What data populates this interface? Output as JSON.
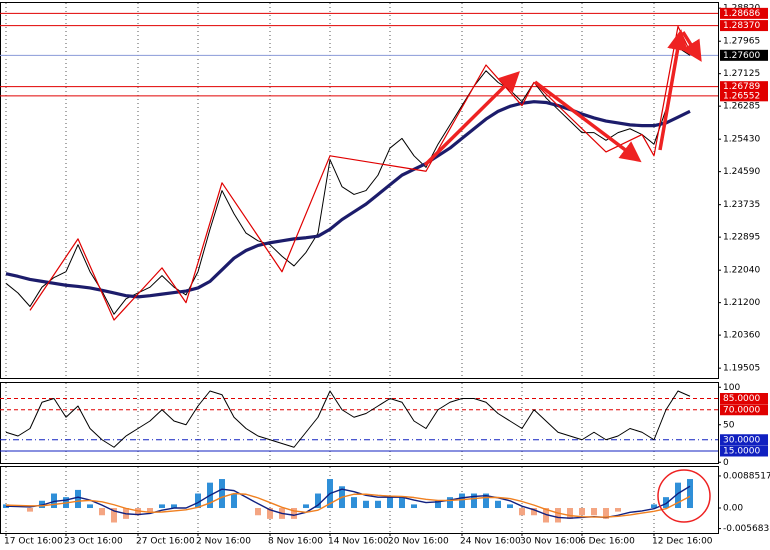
{
  "chart_data": [
    {
      "type": "line",
      "categories": [
        "17 Oct 16:00",
        null,
        null,
        null,
        null,
        "23 Oct 16:00",
        null,
        null,
        null,
        null,
        null,
        "27 Oct 16:00",
        null,
        null,
        null,
        null,
        "2 Nov 16:00",
        null,
        null,
        null,
        null,
        null,
        "8 Nov 16:00",
        null,
        null,
        null,
        null,
        "14 Nov 16:00",
        null,
        null,
        null,
        null,
        "20 Nov 16:00",
        null,
        null,
        null,
        null,
        null,
        "24 Nov 16:00",
        null,
        null,
        null,
        null,
        "30 Nov 16:00",
        null,
        null,
        null,
        null,
        "6 Dec 16:00",
        null,
        null,
        null,
        null,
        null,
        "12 Dec 16:00",
        null,
        null,
        null
      ],
      "ylim": [
        1.1925,
        1.2898
      ],
      "yticks": [
        {
          "value": 1.2882,
          "label": "1.28820"
        },
        {
          "value": 1.27965,
          "label": "1.27965"
        },
        {
          "value": 1.27125,
          "label": "1.27125"
        },
        {
          "value": 1.26285,
          "label": "1.26285"
        },
        {
          "value": 1.2543,
          "label": "1.25430"
        },
        {
          "value": 1.2459,
          "label": "1.24590"
        },
        {
          "value": 1.23735,
          "label": "1.23735"
        },
        {
          "value": 1.22895,
          "label": "1.22895"
        },
        {
          "value": 1.2204,
          "label": "1.22040"
        },
        {
          "value": 1.212,
          "label": "1.21200"
        },
        {
          "value": 1.2036,
          "label": "1.20360"
        },
        {
          "value": 1.19505,
          "label": "1.19505"
        }
      ],
      "levels": [
        {
          "value": 1.28686,
          "label": "1.28686",
          "color": "#e00000",
          "dash": "solid"
        },
        {
          "value": 1.2837,
          "label": "1.28370",
          "color": "#e00000",
          "dash": "solid"
        },
        {
          "value": 1.276,
          "label": "1.27600",
          "color": "#000000",
          "line_color": "#8a9ad8",
          "dash": "solid"
        },
        {
          "value": 1.26789,
          "label": "1.26789",
          "color": "#e00000",
          "dash": "solid"
        },
        {
          "value": 1.26552,
          "label": "1.26552",
          "color": "#e00000",
          "dash": "solid"
        }
      ],
      "series": [
        {
          "color": "#000000",
          "values": [
            1.217,
            1.2145,
            1.211,
            1.216,
            1.2185,
            1.22,
            1.227,
            1.22,
            1.215,
            1.209,
            1.213,
            1.2145,
            1.216,
            1.219,
            1.216,
            1.214,
            1.22,
            1.231,
            1.241,
            1.235,
            1.23,
            1.228,
            1.227,
            1.224,
            1.2215,
            1.225,
            1.23,
            1.249,
            1.242,
            1.24,
            1.241,
            1.245,
            1.252,
            1.2545,
            1.25,
            1.247,
            1.253,
            1.258,
            1.263,
            1.268,
            1.272,
            1.269,
            1.267,
            1.264,
            1.269,
            1.265,
            1.262,
            1.259,
            1.256,
            1.256,
            1.254,
            1.256,
            1.257,
            1.2555,
            1.253,
            1.262,
            1.278,
            1.276
          ]
        },
        {
          "color": "#1c1c6b",
          "values": [
            1.2195,
            1.2188,
            1.218,
            1.2175,
            1.217,
            1.2165,
            1.2162,
            1.2158,
            1.2152,
            1.2145,
            1.2138,
            1.2135,
            1.2138,
            1.2142,
            1.2146,
            1.215,
            1.2158,
            1.2175,
            1.2205,
            1.2235,
            1.2255,
            1.2268,
            1.2275,
            1.228,
            1.2285,
            1.2288,
            1.2292,
            1.231,
            1.2335,
            1.2355,
            1.2375,
            1.24,
            1.2425,
            1.245,
            1.2465,
            1.248,
            1.25,
            1.252,
            1.2545,
            1.257,
            1.2595,
            1.2615,
            1.2628,
            1.2636,
            1.264,
            1.2638,
            1.263,
            1.262,
            1.2608,
            1.2598,
            1.259,
            1.2585,
            1.258,
            1.2578,
            1.2578,
            1.2585,
            1.26,
            1.2615
          ]
        },
        {
          "color": "#e00000",
          "x": [
            2,
            6,
            9,
            13,
            15,
            18,
            23,
            27,
            35,
            40,
            43,
            44,
            50,
            53,
            54,
            56,
            57
          ],
          "values": [
            1.21,
            1.2285,
            1.2075,
            1.221,
            1.212,
            1.243,
            1.22,
            1.25,
            1.246,
            1.2735,
            1.263,
            1.269,
            1.251,
            1.2555,
            1.25,
            1.2835,
            1.277
          ]
        }
      ]
    },
    {
      "type": "line",
      "ylim": [
        -1,
        107
      ],
      "yticks": [
        100,
        50,
        0
      ],
      "levels": [
        {
          "value": 85,
          "label": "85.0000",
          "color": "#e00000",
          "dash": "dashed"
        },
        {
          "value": 70,
          "label": "70.0000",
          "color": "#e00000",
          "dash": "dashed"
        },
        {
          "value": 30,
          "label": "30.0000",
          "color": "#1020c0",
          "dash": "dashdot"
        },
        {
          "value": 15,
          "label": "15.0000",
          "color": "#1020c0",
          "dash": "solid"
        }
      ],
      "series": [
        {
          "color": "#000000",
          "values": [
            40,
            35,
            45,
            80,
            85,
            60,
            75,
            45,
            30,
            20,
            35,
            45,
            55,
            70,
            55,
            50,
            75,
            95,
            90,
            60,
            45,
            35,
            30,
            25,
            20,
            40,
            60,
            95,
            70,
            60,
            65,
            75,
            85,
            80,
            55,
            45,
            70,
            80,
            85,
            85,
            80,
            65,
            55,
            45,
            70,
            55,
            40,
            35,
            30,
            40,
            30,
            35,
            45,
            40,
            30,
            70,
            95,
            88
          ]
        }
      ]
    },
    {
      "type": "bar",
      "ylim": [
        -0.0069,
        0.0116
      ],
      "yticks": [
        {
          "value": 0.0088517,
          "label": "0.0088517"
        },
        {
          "value": 0,
          "label": "0.00"
        },
        {
          "value": -0.005683,
          "label": "-0.005683"
        }
      ],
      "color": "#2f8fd8",
      "negative_color": "#f4a582",
      "values": [
        0.001,
        0.0,
        -0.001,
        0.002,
        0.004,
        0.003,
        0.005,
        0.001,
        -0.002,
        -0.004,
        -0.003,
        -0.002,
        -0.001,
        0.001,
        0.001,
        0.0,
        0.004,
        0.007,
        0.008,
        0.004,
        0.0,
        -0.002,
        -0.003,
        -0.003,
        -0.003,
        0.001,
        0.004,
        0.008,
        0.006,
        0.003,
        0.002,
        0.002,
        0.003,
        0.003,
        0.001,
        0.0,
        0.002,
        0.003,
        0.004,
        0.004,
        0.004,
        0.002,
        0.001,
        -0.002,
        -0.002,
        -0.004,
        -0.004,
        -0.003,
        -0.002,
        -0.002,
        -0.003,
        -0.001,
        0.0,
        0.0,
        0.001,
        0.003,
        0.007,
        0.008
      ],
      "series": [
        {
          "color": "#102080",
          "values": [
            0.0005,
            0.0004,
            0.0003,
            0.0008,
            0.0018,
            0.0022,
            0.003,
            0.0022,
            0.0008,
            -0.0008,
            -0.0016,
            -0.0018,
            -0.0015,
            -0.0006,
            0.0,
            0.0,
            0.0015,
            0.0035,
            0.0052,
            0.0048,
            0.003,
            0.0012,
            -0.0005,
            -0.0015,
            -0.002,
            -0.0012,
            0.0008,
            0.004,
            0.0052,
            0.0045,
            0.0035,
            0.003,
            0.003,
            0.003,
            0.0022,
            0.0015,
            0.0017,
            0.0022,
            0.0028,
            0.0032,
            0.0034,
            0.0028,
            0.002,
            0.0005,
            -0.0005,
            -0.0018,
            -0.0026,
            -0.0028,
            -0.0026,
            -0.0024,
            -0.0026,
            -0.002,
            -0.0012,
            -0.0008,
            -0.0002,
            0.0012,
            0.004,
            0.006
          ]
        },
        {
          "color": "#f08020",
          "values": [
            0.0008,
            0.0007,
            0.0006,
            0.0006,
            0.001,
            0.0014,
            0.0019,
            0.0021,
            0.0017,
            0.0009,
            -0.0001,
            -0.0008,
            -0.0012,
            -0.0011,
            -0.0008,
            -0.0005,
            0.0002,
            0.0014,
            0.003,
            0.004,
            0.0038,
            0.0028,
            0.0015,
            0.0002,
            -0.0008,
            -0.0012,
            -0.0006,
            0.0012,
            0.003,
            0.0038,
            0.0038,
            0.0035,
            0.0033,
            0.0032,
            0.0029,
            0.0024,
            0.0021,
            0.0021,
            0.0023,
            0.0026,
            0.0029,
            0.0029,
            0.0026,
            0.0018,
            0.0008,
            -0.0004,
            -0.0014,
            -0.0021,
            -0.0024,
            -0.0025,
            -0.0025,
            -0.0023,
            -0.0019,
            -0.0014,
            -0.0009,
            -0.0002,
            0.0015,
            0.0032
          ]
        }
      ]
    }
  ]
}
